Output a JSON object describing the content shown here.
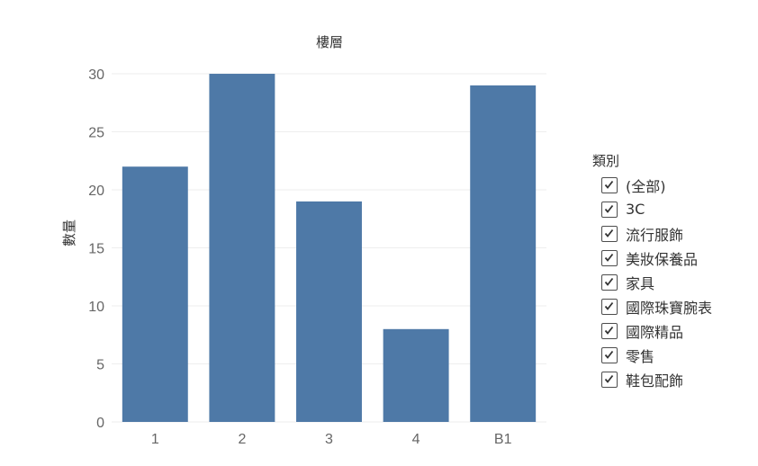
{
  "chart_data": {
    "type": "bar",
    "title": "樓層",
    "xlabel": "",
    "ylabel": "數量",
    "categories": [
      "1",
      "2",
      "3",
      "4",
      "B1"
    ],
    "values": [
      22,
      30,
      19,
      8,
      29
    ],
    "ylim": [
      0,
      30
    ],
    "yticks": [
      0,
      5,
      10,
      15,
      20,
      25,
      30
    ],
    "bar_color": "#4e79a7",
    "grid": true,
    "legend_placement": "right"
  },
  "legend": {
    "title": "類別",
    "items": [
      {
        "label": "(全部)",
        "checked": true
      },
      {
        "label": "3C",
        "checked": true
      },
      {
        "label": "流行服飾",
        "checked": true
      },
      {
        "label": "美妝保養品",
        "checked": true
      },
      {
        "label": "家具",
        "checked": true
      },
      {
        "label": "國際珠寶腕表",
        "checked": true
      },
      {
        "label": "國際精品",
        "checked": true
      },
      {
        "label": "零售",
        "checked": true
      },
      {
        "label": "鞋包配飾",
        "checked": true
      }
    ]
  }
}
